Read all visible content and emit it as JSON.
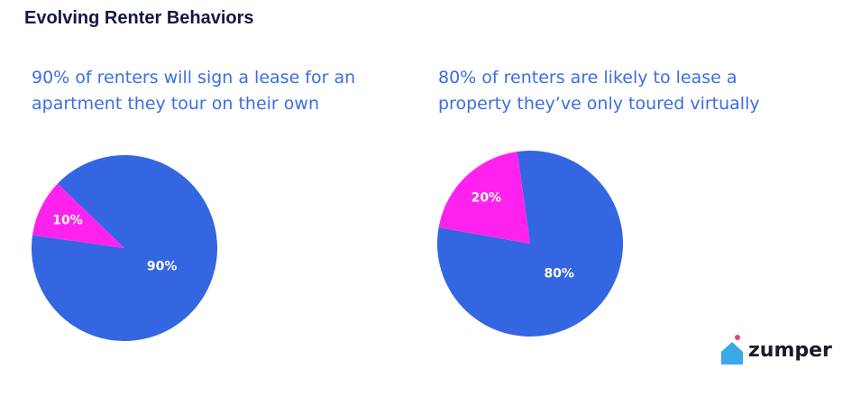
{
  "title": "Evolving Renter Behaviors",
  "logo": "zumper",
  "chart_data": [
    {
      "type": "pie",
      "title": "90% of renters will sign a lease for an apartment they tour on their own",
      "values": [
        90,
        10
      ],
      "value_labels": [
        "90%",
        "10%"
      ],
      "colors": [
        "#3366e0",
        "#ff22ee"
      ]
    },
    {
      "type": "pie",
      "title": "80% of renters are likely to lease a property they’ve only toured virtually",
      "values": [
        80,
        20
      ],
      "value_labels": [
        "80%",
        "20%"
      ],
      "colors": [
        "#3366e0",
        "#ff22ee"
      ]
    }
  ]
}
